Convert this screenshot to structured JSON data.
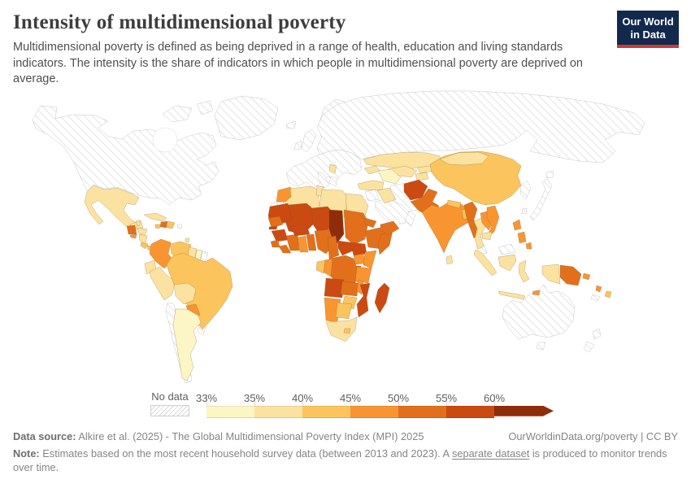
{
  "header": {
    "title": "Intensity of multidimensional poverty",
    "subtitle": "Multidimensional poverty is defined as being deprived in a range of health, education and living standards indicators. The intensity is the share of indicators in which people in multidimensional poverty are deprived on average."
  },
  "logo": {
    "line1": "Our World",
    "line2": "in Data",
    "bg": "#12294D",
    "accent": "#C93B37"
  },
  "chart_data": {
    "type": "choropleth_map",
    "title": "Intensity of multidimensional poverty",
    "unit": "%",
    "legend": {
      "no_data_label": "No data",
      "tick_labels": [
        "33%",
        "35%",
        "40%",
        "45%",
        "50%",
        "55%",
        "60%"
      ],
      "bins": [
        {
          "label": "33-35%",
          "color": "#FCF5C4"
        },
        {
          "label": "35-40%",
          "color": "#FCE2A0"
        },
        {
          "label": "40-45%",
          "color": "#FBC45D"
        },
        {
          "label": "45-50%",
          "color": "#F99531"
        },
        {
          "label": "50-55%",
          "color": "#E2701B"
        },
        {
          "label": "55-60%",
          "color": "#CB4A11"
        },
        {
          "label": "60%+",
          "color": "#8F2D0A"
        }
      ]
    },
    "regions": [
      {
        "id": "north-america",
        "bin": "nd"
      },
      {
        "id": "arctic-islands",
        "bin": "nd"
      },
      {
        "id": "greenland",
        "bin": "nd"
      },
      {
        "id": "iceland",
        "bin": "nd"
      },
      {
        "id": "british-isles",
        "bin": "nd"
      },
      {
        "id": "scandinavia",
        "bin": "nd"
      },
      {
        "id": "europe",
        "bin": "nd"
      },
      {
        "id": "italy",
        "bin": "nd"
      },
      {
        "id": "greece",
        "bin": "nd"
      },
      {
        "id": "russia",
        "bin": "nd"
      },
      {
        "id": "korea",
        "bin": "nd"
      },
      {
        "id": "japan",
        "bin": "nd"
      },
      {
        "id": "taiwan",
        "bin": "nd"
      },
      {
        "id": "levant",
        "bin": "nd"
      },
      {
        "id": "iran",
        "bin": "nd"
      },
      {
        "id": "saudi-arabia",
        "bin": "nd"
      },
      {
        "id": "oman",
        "bin": "nd"
      },
      {
        "id": "malaysia",
        "bin": "nd"
      },
      {
        "id": "australia",
        "bin": "nd"
      },
      {
        "id": "tasmania",
        "bin": "nd"
      },
      {
        "id": "new-zealand",
        "bin": "nd"
      },
      {
        "id": "new-caledonia",
        "bin": "nd"
      },
      {
        "id": "chile",
        "bin": "nd"
      },
      {
        "id": "uruguay",
        "bin": "nd"
      },
      {
        "id": "french-guiana",
        "bin": "nd"
      },
      {
        "id": "puerto-rico",
        "bin": "nd"
      },
      {
        "id": "western-sahara",
        "bin": "nd"
      },
      {
        "id": "argentina",
        "bin": 0
      },
      {
        "id": "suriname",
        "bin": 0
      },
      {
        "id": "turkmenistan",
        "bin": 0
      },
      {
        "id": "mexico",
        "bin": 1
      },
      {
        "id": "belize",
        "bin": 1
      },
      {
        "id": "honduras",
        "bin": 1
      },
      {
        "id": "nicaragua",
        "bin": 1
      },
      {
        "id": "cuba",
        "bin": 1
      },
      {
        "id": "trinidad-and-tobago",
        "bin": 1
      },
      {
        "id": "guyana",
        "bin": 1
      },
      {
        "id": "ecuador",
        "bin": 1
      },
      {
        "id": "peru",
        "bin": 1
      },
      {
        "id": "bolivia",
        "bin": 1
      },
      {
        "id": "algeria",
        "bin": 1
      },
      {
        "id": "tunisia",
        "bin": 1
      },
      {
        "id": "libya",
        "bin": 1
      },
      {
        "id": "egypt",
        "bin": 1
      },
      {
        "id": "south-africa",
        "bin": 1
      },
      {
        "id": "turkey",
        "bin": 1
      },
      {
        "id": "iraq",
        "bin": 1
      },
      {
        "id": "caucasus",
        "bin": 1
      },
      {
        "id": "kazakhstan",
        "bin": 1
      },
      {
        "id": "uzbekistan",
        "bin": 1
      },
      {
        "id": "kyrgyzstan",
        "bin": 1
      },
      {
        "id": "tajikistan",
        "bin": 1
      },
      {
        "id": "mongolia",
        "bin": 1
      },
      {
        "id": "thailand",
        "bin": 1
      },
      {
        "id": "cambodia",
        "bin": 1
      },
      {
        "id": "sri-lanka",
        "bin": 1
      },
      {
        "id": "indonesia",
        "bin": 1
      },
      {
        "id": "balkans",
        "bin": 1
      },
      {
        "id": "venezuela",
        "bin": 2
      },
      {
        "id": "brazil",
        "bin": 2
      },
      {
        "id": "costa-rica",
        "bin": 2
      },
      {
        "id": "panama",
        "bin": 2
      },
      {
        "id": "dominican-republic",
        "bin": 2
      },
      {
        "id": "jamaica",
        "bin": 2
      },
      {
        "id": "gabon",
        "bin": 2
      },
      {
        "id": "botswana",
        "bin": 2
      },
      {
        "id": "zimbabwe",
        "bin": 2
      },
      {
        "id": "lesotho",
        "bin": 2
      },
      {
        "id": "nepal",
        "bin": 2
      },
      {
        "id": "bhutan",
        "bin": 2
      },
      {
        "id": "bangladesh",
        "bin": 2
      },
      {
        "id": "china",
        "bin": 2
      },
      {
        "id": "fiji",
        "bin": 2
      },
      {
        "id": "colombia",
        "bin": 3
      },
      {
        "id": "paraguay",
        "bin": 3
      },
      {
        "id": "el-salvador",
        "bin": 3
      },
      {
        "id": "morocco",
        "bin": 3
      },
      {
        "id": "ghana",
        "bin": 3
      },
      {
        "id": "congo",
        "bin": 3
      },
      {
        "id": "namibia",
        "bin": 3
      },
      {
        "id": "uganda",
        "bin": 3
      },
      {
        "id": "kenya",
        "bin": 3
      },
      {
        "id": "tanzania",
        "bin": 3
      },
      {
        "id": "malawi",
        "bin": 3
      },
      {
        "id": "djibouti",
        "bin": 3
      },
      {
        "id": "india",
        "bin": 3
      },
      {
        "id": "philippines",
        "bin": 3
      },
      {
        "id": "east-timor",
        "bin": 3
      },
      {
        "id": "solomon-islands",
        "bin": 3
      },
      {
        "id": "vanuatu",
        "bin": 3
      },
      {
        "id": "laos",
        "bin": 3
      },
      {
        "id": "vietnam",
        "bin": 3
      },
      {
        "id": "guatemala",
        "bin": 4
      },
      {
        "id": "haiti",
        "bin": 4
      },
      {
        "id": "senegal",
        "bin": 4
      },
      {
        "id": "sierra-leone",
        "bin": 4
      },
      {
        "id": "liberia",
        "bin": 4
      },
      {
        "id": "cote-divoire",
        "bin": 4
      },
      {
        "id": "togo-benin",
        "bin": 4
      },
      {
        "id": "nigeria",
        "bin": 4
      },
      {
        "id": "cameroon",
        "bin": 4
      },
      {
        "id": "sudan",
        "bin": 4
      },
      {
        "id": "eritrea",
        "bin": 4
      },
      {
        "id": "ethiopia",
        "bin": 4
      },
      {
        "id": "somalia",
        "bin": 4
      },
      {
        "id": "dr-congo",
        "bin": 4
      },
      {
        "id": "zambia",
        "bin": 4
      },
      {
        "id": "rwanda-burundi",
        "bin": 4
      },
      {
        "id": "yemen",
        "bin": 4
      },
      {
        "id": "pakistan",
        "bin": 4
      },
      {
        "id": "myanmar",
        "bin": 4
      },
      {
        "id": "papua-new-guinea",
        "bin": 4
      },
      {
        "id": "mauritania",
        "bin": 5
      },
      {
        "id": "mali",
        "bin": 5
      },
      {
        "id": "niger",
        "bin": 5
      },
      {
        "id": "burkina-faso",
        "bin": 5
      },
      {
        "id": "guinea",
        "bin": 5
      },
      {
        "id": "gambia",
        "bin": 5
      },
      {
        "id": "central-african-republic",
        "bin": 5
      },
      {
        "id": "south-sudan",
        "bin": 5
      },
      {
        "id": "angola",
        "bin": 5
      },
      {
        "id": "mozambique",
        "bin": 5
      },
      {
        "id": "madagascar",
        "bin": 5
      },
      {
        "id": "afghanistan",
        "bin": 5
      },
      {
        "id": "chad",
        "bin": 6
      }
    ]
  },
  "footer": {
    "datasource_label": "Data source:",
    "datasource_text": " Alkire et al. (2025) - The Global Multidimensional Poverty Index (MPI) 2025",
    "url_label": "OurWorldinData.org/poverty",
    "divider": " | ",
    "license_label": "CC BY",
    "note_label": "Note:",
    "note_pre": " Estimates based on the most recent household survey data (between 2013 and 2023). A ",
    "note_link": "separate dataset",
    "note_post": " is produced to monitor trends over time."
  }
}
